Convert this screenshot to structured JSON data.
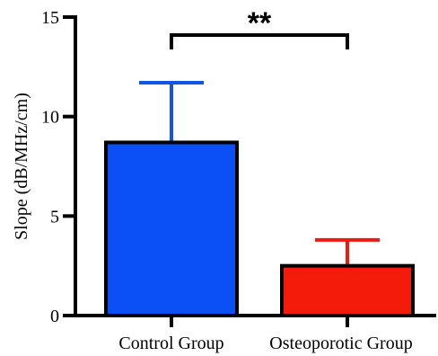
{
  "chart_data": {
    "type": "bar",
    "categories": [
      "Control Group",
      "Osteoporotic Group"
    ],
    "values": [
      8.7,
      2.5
    ],
    "error_upper": [
      11.7,
      3.8
    ],
    "colors": [
      "#0b50f5",
      "#f51b0b"
    ],
    "error_colors": [
      "#1155e6",
      "#ee1a10"
    ],
    "title": "",
    "xlabel": "",
    "ylabel": "Slope (dB/MHz/cm)",
    "ylim": [
      0,
      15
    ],
    "yticks": [
      0,
      5,
      10,
      15
    ],
    "ytick_labels": [
      "0",
      "5",
      "10",
      "15"
    ],
    "grid": false,
    "significance": {
      "label": "**",
      "between": [
        0,
        1
      ]
    }
  }
}
